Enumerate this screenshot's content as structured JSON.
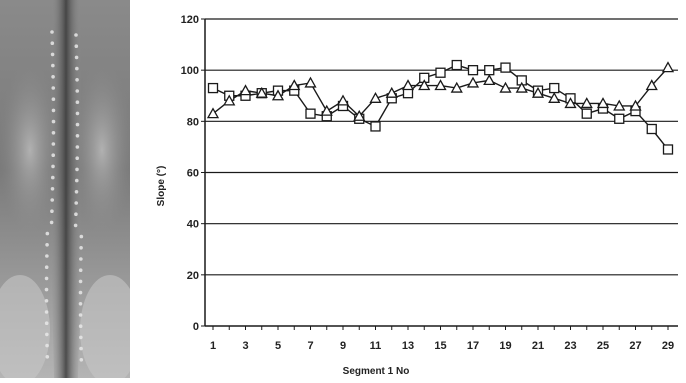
{
  "figure": {
    "image_alt": "spine x-ray with segment markers",
    "series_markers": [
      "square",
      "triangle"
    ],
    "colors": {
      "line": "#1a1a1a",
      "grid": "#1a1a1a",
      "marker_fill": "#ffffff"
    }
  },
  "chart_data": {
    "type": "line",
    "title": "",
    "xlabel": "Segment 1 No",
    "ylabel": "Slope (°)",
    "ylim": [
      0,
      120
    ],
    "xlim": [
      1,
      29
    ],
    "yticks": [
      0,
      20,
      40,
      60,
      80,
      100,
      120
    ],
    "xticks": [
      1,
      3,
      5,
      7,
      9,
      11,
      13,
      15,
      17,
      19,
      21,
      23,
      25,
      27,
      29
    ],
    "grid": "horizontal",
    "legend": "none",
    "x": [
      1,
      2,
      3,
      4,
      5,
      6,
      7,
      8,
      9,
      10,
      11,
      12,
      13,
      14,
      15,
      16,
      17,
      18,
      19,
      20,
      21,
      22,
      23,
      24,
      25,
      26,
      27,
      28,
      29
    ],
    "series": [
      {
        "marker": "square",
        "values": [
          93,
          90,
          90,
          91,
          92,
          92,
          83,
          82,
          86,
          81,
          78,
          89,
          91,
          97,
          99,
          102,
          100,
          100,
          101,
          96,
          92,
          93,
          89,
          83,
          85,
          81,
          84,
          77,
          69
        ]
      },
      {
        "marker": "triangle",
        "values": [
          83,
          88,
          92,
          91,
          90,
          94,
          95,
          84,
          88,
          82,
          89,
          91,
          94,
          94,
          94,
          93,
          95,
          96,
          93,
          93,
          91,
          89,
          87,
          87,
          87,
          86,
          86,
          94,
          101
        ]
      }
    ]
  }
}
